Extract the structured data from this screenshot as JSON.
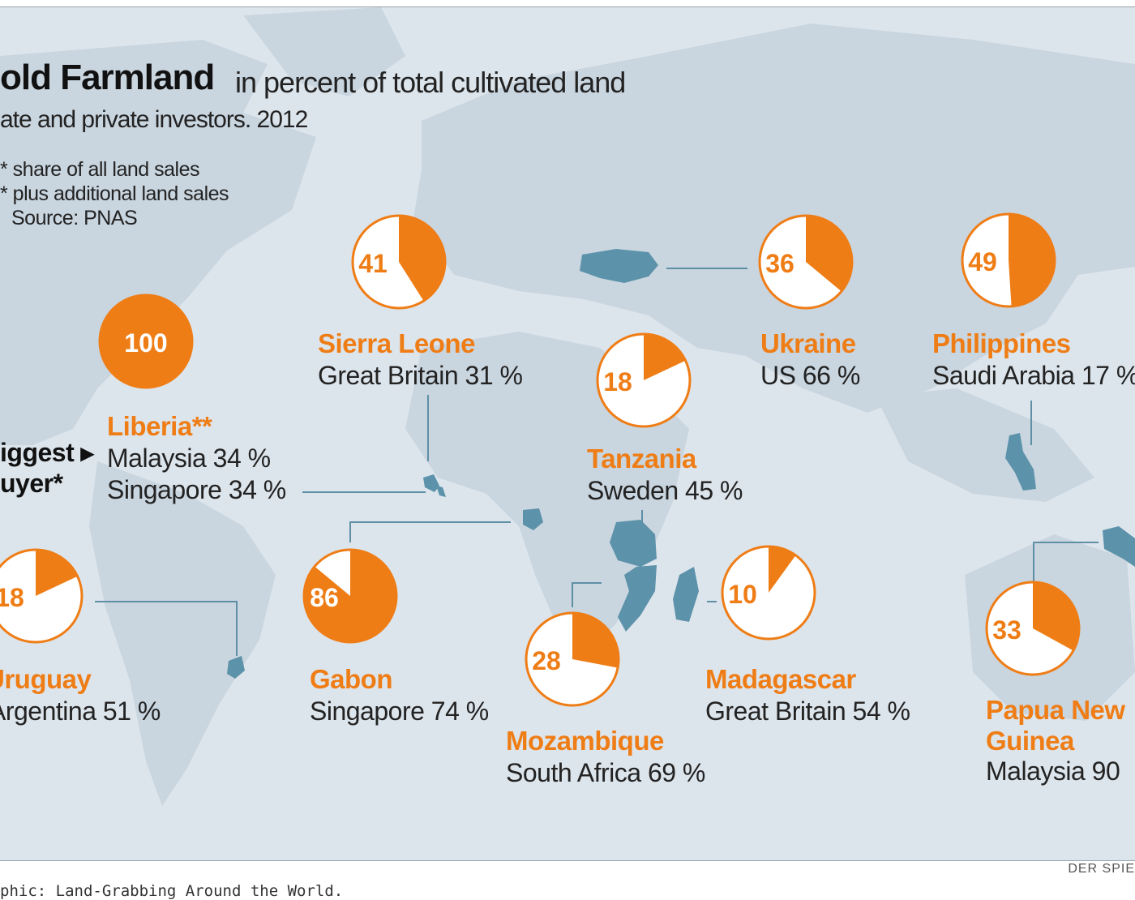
{
  "header": {
    "title_bold": "old Farmland",
    "title_rest": "in percent of total cultivated land",
    "subtitle": "ate and private investors. 2012"
  },
  "notes": [
    "* share of all land sales",
    "* plus additional land sales",
    "Source: PNAS"
  ],
  "biggest_buyer": {
    "line1": "iggest ▸",
    "line2": "uyer*"
  },
  "footer": {
    "credit": "DER SPIE",
    "caption": "phic: Land-Grabbing Around the World."
  },
  "colors": {
    "accent": "#ef7d16",
    "land": "#c9d5df",
    "ocean": "#dde5ec",
    "highlight": "#5c92aa",
    "connector": "#5f8fa5"
  },
  "chart_data": {
    "type": "pie",
    "title": "old Farmland in percent of total cultivated land",
    "value_unit": "percent",
    "items": [
      {
        "country": "Liberia**",
        "value": 100,
        "buyers": [
          "Malaysia 34 %",
          "Singapore 34 %"
        ]
      },
      {
        "country": "Sierra Leone",
        "value": 41,
        "buyers": [
          "Great Britain 31 %"
        ]
      },
      {
        "country": "Ukraine",
        "value": 36,
        "buyers": [
          "US 66 %"
        ]
      },
      {
        "country": "Philippines",
        "value": 49,
        "buyers": [
          "Saudi Arabia 17 %"
        ]
      },
      {
        "country": "Tanzania",
        "value": 18,
        "buyers": [
          "Sweden 45 %"
        ]
      },
      {
        "country": "Uruguay",
        "value": 18,
        "buyers": [
          "Argentina 51 %"
        ]
      },
      {
        "country": "Gabon",
        "value": 86,
        "buyers": [
          "Singapore 74 %"
        ]
      },
      {
        "country": "Mozambique",
        "value": 28,
        "buyers": [
          "South Africa 69 %"
        ]
      },
      {
        "country": "Madagascar",
        "value": 10,
        "buyers": [
          "Great Britain 54 %"
        ]
      },
      {
        "country": "Papua New Guinea",
        "value": 33,
        "buyers": [
          "Malaysia 90"
        ]
      }
    ]
  }
}
